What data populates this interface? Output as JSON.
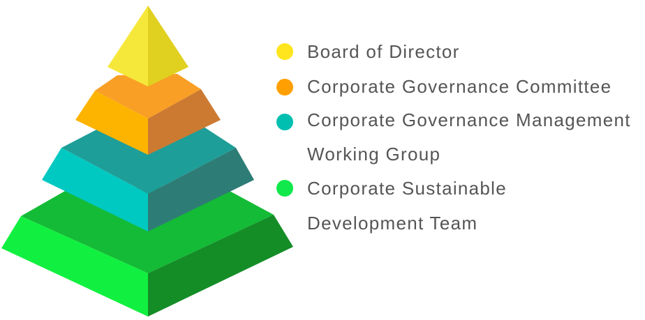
{
  "diagram": {
    "levels": [
      {
        "label_lines": [
          "Board of Director"
        ],
        "color": "#FFE51E",
        "face_left": "#F5E83A",
        "face_right": "#E0D020",
        "top": "#F7EE2F"
      },
      {
        "label_lines": [
          "Corporate Governance Committee"
        ],
        "color": "#FFA000",
        "face_left": "#FDB400",
        "face_right": "#CC7A32",
        "top": "#F99F25"
      },
      {
        "label_lines": [
          "Corporate Governance Management",
          "Working Group"
        ],
        "color": "#00BFB0",
        "face_left": "#00C9C2",
        "face_right": "#2E7C76",
        "top": "#1E9E98"
      },
      {
        "label_lines": [
          "Corporate Sustainable",
          "Development Team"
        ],
        "color": "#11E84B",
        "face_left": "#11F040",
        "face_right": "#148D27",
        "top": "#14BB36"
      }
    ]
  }
}
